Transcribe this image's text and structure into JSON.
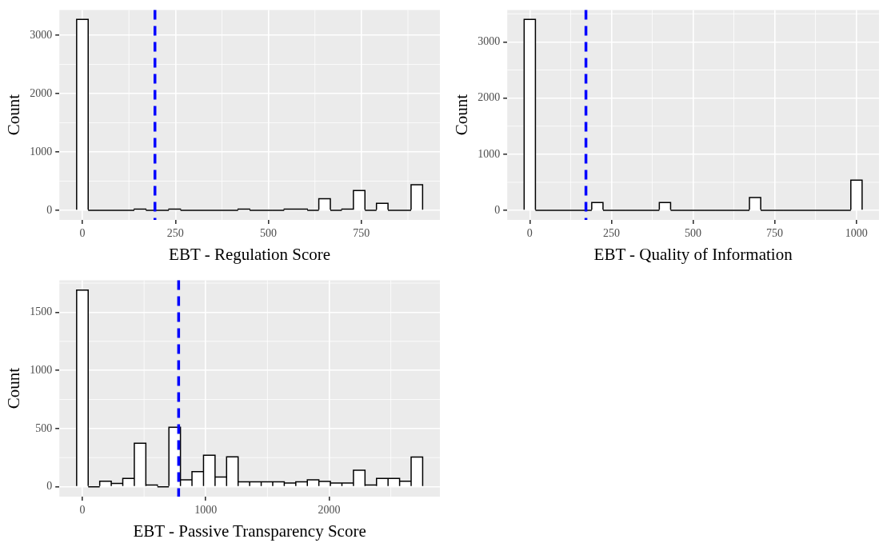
{
  "chart_data": [
    {
      "type": "histogram",
      "xlabel": "EBT - Regulation Score",
      "ylabel": "Count",
      "color": "#ffffff",
      "grid": true,
      "xlim": [
        -62,
        961
      ],
      "ylim": [
        -164,
        3434
      ],
      "xticks": [
        0,
        250,
        500,
        750
      ],
      "yticks": [
        0,
        1000,
        2000,
        3000
      ],
      "bins": [
        -15.5,
        15.5,
        46.5,
        77.5,
        108.5,
        139.5,
        170.5,
        201.5,
        232.5,
        263.5,
        294.5,
        325.5,
        356.5,
        387.5,
        418.5,
        449.5,
        480.5,
        511.5,
        542.5,
        573.5,
        604.5,
        635.5,
        666.5,
        697.5,
        728.5,
        759.5,
        790.5,
        821.5,
        852.5,
        883.5,
        914.5
      ],
      "values": [
        3270,
        0,
        0,
        0,
        0,
        20,
        0,
        0,
        20,
        0,
        0,
        0,
        0,
        0,
        20,
        0,
        0,
        0,
        20,
        20,
        0,
        200,
        0,
        20,
        340,
        0,
        120,
        0,
        0,
        440
      ],
      "ref_lines": [
        {
          "axis": "x",
          "value": 195,
          "color": "#0000ff",
          "line_style": "dashed"
        }
      ]
    },
    {
      "type": "histogram",
      "xlabel": "EBT - Quality of Information",
      "ylabel": "Count",
      "color": "#ffffff",
      "grid": true,
      "xlim": [
        -69,
        1069.5
      ],
      "ylim": [
        -170,
        3570
      ],
      "xticks": [
        0,
        250,
        500,
        750,
        1000
      ],
      "yticks": [
        0,
        1000,
        2000,
        3000
      ],
      "bins": [
        -17.25,
        17.25,
        51.75,
        86.25,
        120.75,
        155.25,
        189.75,
        224.25,
        258.75,
        293.25,
        327.75,
        362.25,
        396.75,
        431.25,
        465.75,
        500.25,
        534.75,
        569.25,
        603.75,
        638.25,
        672.75,
        707.25,
        741.75,
        776.25,
        810.75,
        845.25,
        879.75,
        914.25,
        948.75,
        983.25,
        1017.75
      ],
      "values": [
        3400,
        0,
        0,
        0,
        0,
        0,
        140,
        0,
        0,
        0,
        0,
        0,
        140,
        0,
        0,
        0,
        0,
        0,
        0,
        0,
        230,
        0,
        0,
        0,
        0,
        0,
        0,
        0,
        0,
        540
      ],
      "ref_lines": [
        {
          "axis": "x",
          "value": 172,
          "color": "#0000ff",
          "line_style": "dashed"
        }
      ]
    },
    {
      "type": "histogram",
      "xlabel": "EBT - Passive Transparency Score",
      "ylabel": "Count",
      "color": "#ffffff",
      "grid": true,
      "xlim": [
        -187,
        2898
      ],
      "ylim": [
        -85,
        1775
      ],
      "xticks": [
        0,
        1000,
        2000
      ],
      "yticks": [
        0,
        500,
        1000,
        1500
      ],
      "bins": [
        -46.75,
        46.75,
        140.25,
        233.75,
        327.25,
        420.75,
        514.25,
        607.75,
        701.25,
        794.75,
        888.25,
        981.75,
        1075.25,
        1168.75,
        1262.25,
        1355.75,
        1449.25,
        1542.75,
        1636.25,
        1729.75,
        1823.25,
        1916.75,
        2010.25,
        2103.75,
        2197.25,
        2290.75,
        2384.25,
        2477.75,
        2571.25,
        2664.75,
        2758.25
      ],
      "values": [
        1690,
        0,
        47,
        28,
        71,
        373,
        15,
        0,
        512,
        59,
        130,
        271,
        83,
        257,
        42,
        42,
        42,
        42,
        31,
        42,
        59,
        45,
        31,
        31,
        142,
        15,
        71,
        71,
        47,
        255
      ],
      "ref_lines": [
        {
          "axis": "x",
          "value": 780,
          "color": "#0000ff",
          "line_style": "dashed"
        }
      ]
    }
  ]
}
